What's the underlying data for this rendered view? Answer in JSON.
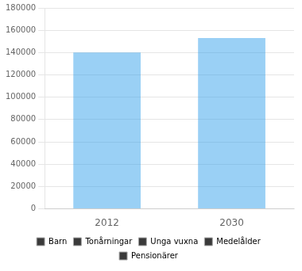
{
  "chart_data": {
    "type": "bar",
    "categories": [
      "2012",
      "2030"
    ],
    "values": [
      140000,
      153000
    ],
    "ylim": [
      0,
      180000
    ],
    "yticks": [
      0,
      20000,
      40000,
      60000,
      80000,
      100000,
      120000,
      140000,
      160000,
      180000
    ],
    "grid": true,
    "legend": "bottom",
    "legend_entries": [
      "Barn",
      "Tonårningar",
      "Unga vuxna",
      "Medelålder",
      "Pensionärer"
    ],
    "legend_color": "#3a3a3a"
  }
}
